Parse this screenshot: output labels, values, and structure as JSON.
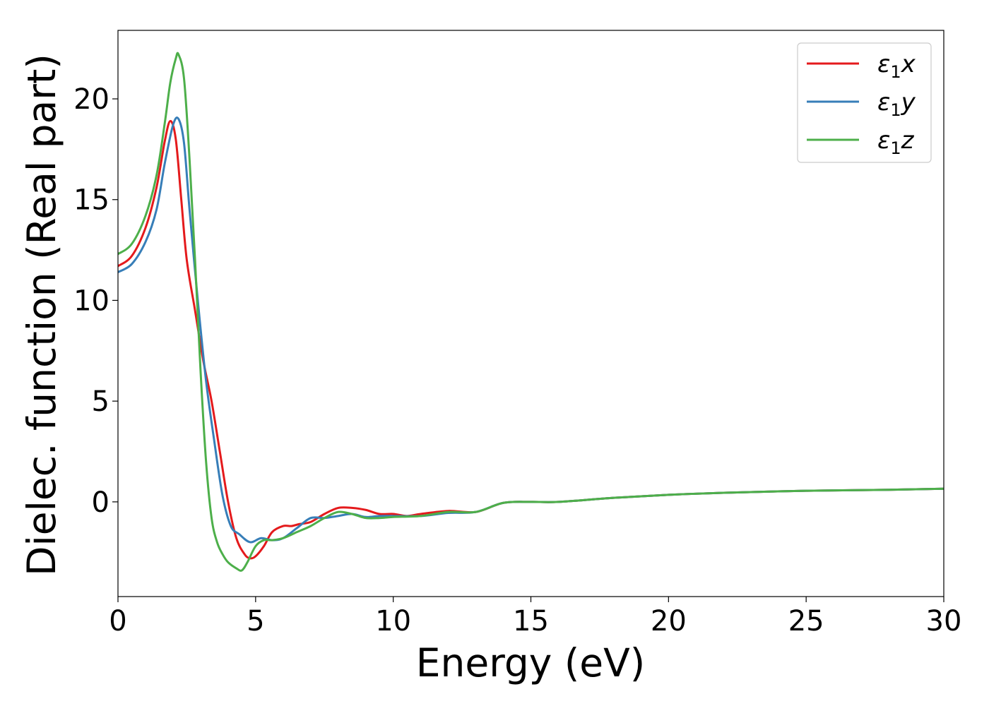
{
  "chart_data": {
    "type": "line",
    "title": "",
    "xlabel": "Energy (eV)",
    "ylabel": "Dielec. function (Real part)",
    "xlim": [
      0,
      30
    ],
    "ylim": [
      -4.7,
      23.4
    ],
    "xticks": [
      0,
      5,
      10,
      15,
      20,
      25,
      30
    ],
    "yticks": [
      0,
      5,
      10,
      15,
      20
    ],
    "grid": false,
    "legend_position": "top-right",
    "series": [
      {
        "name": "ε1x",
        "symbol": "ε",
        "subscript": "1",
        "suffix": "x",
        "color": "#e41a1c",
        "x": [
          0,
          0.5,
          1.0,
          1.4,
          1.7,
          1.9,
          2.1,
          2.3,
          2.5,
          2.8,
          3.1,
          3.4,
          3.7,
          4.0,
          4.3,
          4.6,
          4.8,
          5.0,
          5.3,
          5.6,
          6.0,
          6.3,
          6.6,
          7.0,
          7.5,
          8.0,
          8.5,
          9.0,
          9.5,
          10.0,
          10.5,
          11.0,
          12.0,
          13.0,
          14.0,
          15.0,
          16.0,
          18.0,
          20.0,
          22.0,
          25.0,
          28.0,
          30.0
        ],
        "y": [
          11.7,
          12.2,
          13.6,
          15.6,
          17.9,
          18.9,
          18.0,
          15.0,
          12.0,
          9.5,
          7.0,
          5.0,
          2.5,
          0.0,
          -1.8,
          -2.6,
          -2.8,
          -2.7,
          -2.2,
          -1.5,
          -1.2,
          -1.2,
          -1.1,
          -1.0,
          -0.6,
          -0.3,
          -0.3,
          -0.4,
          -0.6,
          -0.6,
          -0.7,
          -0.6,
          -0.45,
          -0.5,
          -0.05,
          0.0,
          0.0,
          0.2,
          0.35,
          0.45,
          0.55,
          0.6,
          0.65
        ]
      },
      {
        "name": "ε1y",
        "symbol": "ε",
        "subscript": "1",
        "suffix": "y",
        "color": "#377eb8",
        "x": [
          0,
          0.5,
          1.0,
          1.4,
          1.7,
          2.0,
          2.2,
          2.4,
          2.6,
          2.9,
          3.2,
          3.5,
          3.8,
          4.1,
          4.4,
          4.8,
          5.2,
          5.6,
          6.0,
          6.5,
          7.0,
          7.5,
          8.0,
          8.5,
          9.0,
          9.5,
          10.0,
          11.0,
          12.0,
          13.0,
          14.0,
          15.0,
          16.0,
          18.0,
          20.0,
          22.0,
          25.0,
          28.0,
          30.0
        ],
        "y": [
          11.4,
          11.8,
          12.9,
          14.5,
          16.8,
          18.7,
          19.0,
          17.8,
          14.5,
          10.0,
          6.0,
          3.0,
          0.3,
          -1.2,
          -1.6,
          -2.0,
          -1.8,
          -1.9,
          -1.8,
          -1.3,
          -0.8,
          -0.8,
          -0.7,
          -0.6,
          -0.75,
          -0.7,
          -0.7,
          -0.7,
          -0.55,
          -0.5,
          -0.05,
          0.0,
          0.0,
          0.2,
          0.35,
          0.45,
          0.55,
          0.6,
          0.65
        ]
      },
      {
        "name": "ε1z",
        "symbol": "ε",
        "subscript": "1",
        "suffix": "z",
        "color": "#4daf4a",
        "x": [
          0,
          0.5,
          1.0,
          1.4,
          1.7,
          1.9,
          2.1,
          2.2,
          2.4,
          2.6,
          2.8,
          3.0,
          3.2,
          3.4,
          3.6,
          3.8,
          4.0,
          4.3,
          4.5,
          4.7,
          5.0,
          5.3,
          5.6,
          6.0,
          6.5,
          7.0,
          7.5,
          8.0,
          8.5,
          9.0,
          9.5,
          10.0,
          11.0,
          12.0,
          13.0,
          14.0,
          15.0,
          16.0,
          18.0,
          20.0,
          22.0,
          25.0,
          28.0,
          30.0
        ],
        "y": [
          12.3,
          12.8,
          14.2,
          16.2,
          18.8,
          20.8,
          22.0,
          22.2,
          21.0,
          17.0,
          12.0,
          6.5,
          2.0,
          -0.8,
          -2.0,
          -2.6,
          -3.0,
          -3.3,
          -3.4,
          -3.0,
          -2.2,
          -1.9,
          -1.9,
          -1.8,
          -1.5,
          -1.2,
          -0.8,
          -0.5,
          -0.6,
          -0.8,
          -0.8,
          -0.75,
          -0.7,
          -0.5,
          -0.5,
          -0.05,
          0.0,
          0.0,
          0.2,
          0.35,
          0.45,
          0.55,
          0.6,
          0.65
        ]
      }
    ]
  }
}
